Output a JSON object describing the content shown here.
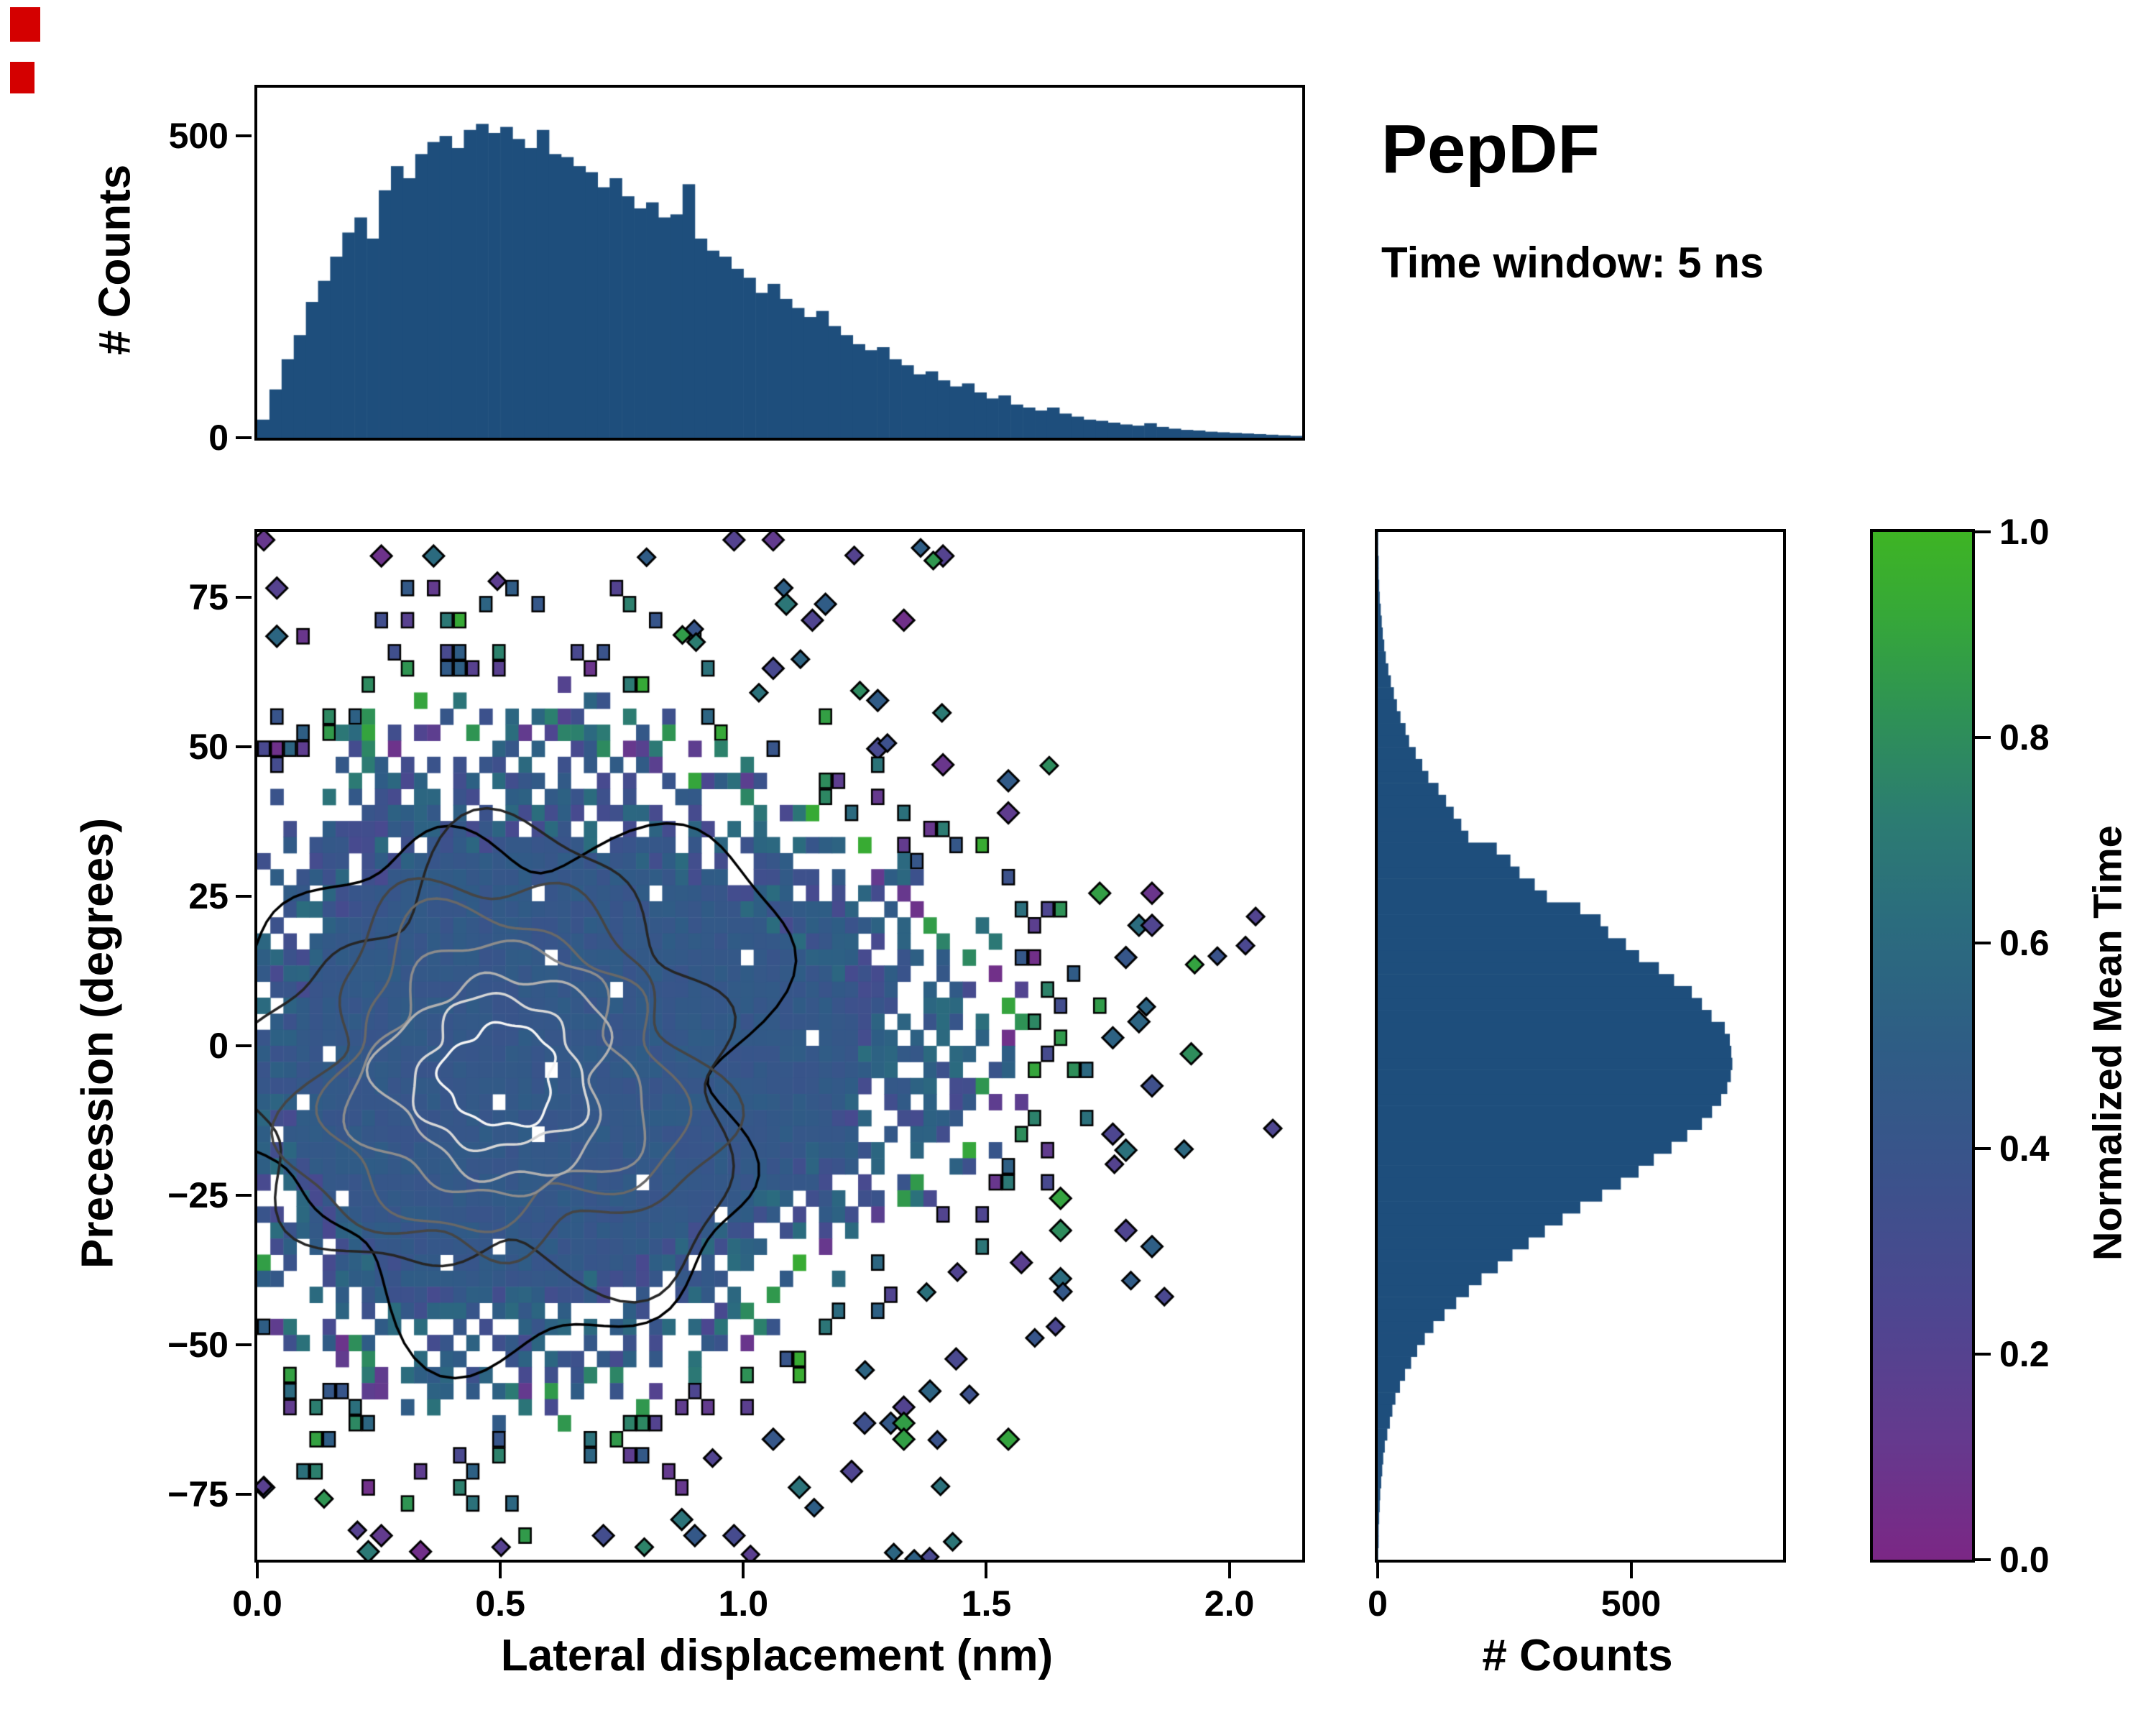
{
  "figure": {
    "title": "PepDF",
    "subtitle": "Time window: 5 ns"
  },
  "colors": {
    "hist_fill": "#1e4e7c",
    "axis": "#000000",
    "background": "#ffffff"
  },
  "colormap": {
    "label": "Normalized Mean Time",
    "stops": [
      [
        0.0,
        "#7b2785"
      ],
      [
        0.12,
        "#643a8e"
      ],
      [
        0.25,
        "#4c4790"
      ],
      [
        0.38,
        "#3a538b"
      ],
      [
        0.5,
        "#2e5d85"
      ],
      [
        0.62,
        "#2b6c7e"
      ],
      [
        0.72,
        "#2c7c72"
      ],
      [
        0.82,
        "#2e9156"
      ],
      [
        0.92,
        "#36a838"
      ],
      [
        1.0,
        "#3eb424"
      ]
    ]
  },
  "ticks": {
    "main_x": {
      "values": [
        0,
        0.5,
        1,
        1.5,
        2
      ],
      "labels": [
        "0.0",
        "0.5",
        "1.0",
        "1.5",
        "2.0"
      ]
    },
    "main_y": {
      "values": [
        75,
        50,
        25,
        0,
        -25,
        -50,
        -75
      ],
      "labels": [
        "75",
        "50",
        "25",
        "0",
        "−25",
        "−50",
        "−75"
      ]
    },
    "top_y": {
      "values": [
        500,
        0
      ],
      "labels": [
        "500",
        "0"
      ]
    },
    "right_x": {
      "values": [
        0,
        500
      ],
      "labels": [
        "0",
        "500"
      ]
    },
    "colorbar": {
      "values": [
        1.0,
        0.8,
        0.6,
        0.4,
        0.2,
        0.0
      ],
      "labels": [
        "1.0",
        "0.8",
        "0.6",
        "0.4",
        "0.2",
        "0.0"
      ]
    }
  },
  "chart_data": [
    {
      "type": "bar",
      "panel": "top-marginal-histogram",
      "ylabel": "# Counts",
      "xlim": [
        0,
        2.15
      ],
      "ylim": [
        0,
        580
      ],
      "yticks": [
        0,
        500
      ],
      "bin_start": 0,
      "bin_width": 0.025,
      "values": [
        30,
        80,
        130,
        170,
        225,
        260,
        300,
        340,
        365,
        330,
        410,
        450,
        430,
        470,
        490,
        500,
        480,
        510,
        520,
        505,
        515,
        495,
        480,
        510,
        470,
        465,
        450,
        440,
        415,
        430,
        400,
        380,
        390,
        365,
        370,
        420,
        330,
        310,
        300,
        280,
        265,
        240,
        255,
        230,
        215,
        200,
        210,
        185,
        170,
        155,
        145,
        150,
        130,
        120,
        105,
        110,
        95,
        85,
        90,
        75,
        65,
        70,
        55,
        50,
        45,
        50,
        40,
        35,
        30,
        28,
        25,
        22,
        20,
        24,
        18,
        15,
        13,
        12,
        10,
        9,
        8,
        7,
        6,
        5,
        4,
        3
      ]
    },
    {
      "type": "heatmap",
      "panel": "joint-2d-histogram",
      "xlabel": "Lateral displacement (nm)",
      "ylabel": "Precession (degrees)",
      "color_label": "Normalized Mean Time",
      "xlim": [
        0,
        2.15
      ],
      "ylim": [
        -86,
        86
      ],
      "xticks": [
        0,
        0.5,
        1.0,
        1.5,
        2.0
      ],
      "yticks": [
        -75,
        -50,
        -25,
        0,
        25,
        50,
        75
      ],
      "color_range": [
        0,
        1
      ],
      "distribution": {
        "nx": 80,
        "ny": 64,
        "seed": 7,
        "fill_scale": 2.0,
        "fill_cap": 0.98,
        "blobs": [
          {
            "cx": 0.5,
            "cy": -5,
            "sx": 0.38,
            "sy": 30,
            "w": 1.0
          },
          {
            "cx": 1.02,
            "cy": 0,
            "sx": 0.45,
            "sy": 27,
            "w": 0.5
          },
          {
            "cx": 0.52,
            "cy": 0,
            "sx": 0.52,
            "sy": 55,
            "w": 0.35
          }
        ],
        "core_value": 0.44,
        "core_jitter": 0.1,
        "mid_jitter": 0.35
      },
      "contours": {
        "cx": 0.5,
        "cy": -5,
        "sx": 0.38,
        "sy": 28,
        "levels": [
          0.12,
          0.22,
          0.34,
          0.47,
          0.6,
          0.72,
          0.83,
          0.92
        ],
        "colors": [
          "#000000",
          "#262626",
          "#454545",
          "#686868",
          "#8c8c8c",
          "#b0b0b0",
          "#d6d6d6",
          "#f4f4f4"
        ],
        "linewidth": 3.5
      },
      "outliers": {
        "count": 46,
        "seed": 11
      }
    },
    {
      "type": "bar",
      "panel": "right-marginal-histogram",
      "orientation": "horizontal",
      "xlabel": "# Counts",
      "xlim": [
        0,
        800
      ],
      "xticks": [
        0,
        500
      ],
      "bin_start": -86,
      "bin_width": 2,
      "values": [
        1,
        2,
        2,
        3,
        4,
        5,
        7,
        9,
        11,
        14,
        19,
        24,
        29,
        35,
        44,
        54,
        66,
        78,
        93,
        110,
        132,
        155,
        180,
        205,
        237,
        266,
        298,
        330,
        365,
        400,
        443,
        480,
        515,
        545,
        580,
        611,
        640,
        660,
        678,
        690,
        697,
        700,
        698,
        695,
        685,
        659,
        640,
        620,
        585,
        555,
        516,
        490,
        455,
        440,
        400,
        334,
        310,
        280,
        262,
        235,
        179,
        165,
        150,
        135,
        120,
        100,
        88,
        75,
        62,
        55,
        45,
        38,
        32,
        26,
        21,
        16,
        13,
        10,
        8,
        6,
        4,
        3,
        2,
        2,
        1,
        1
      ]
    }
  ]
}
